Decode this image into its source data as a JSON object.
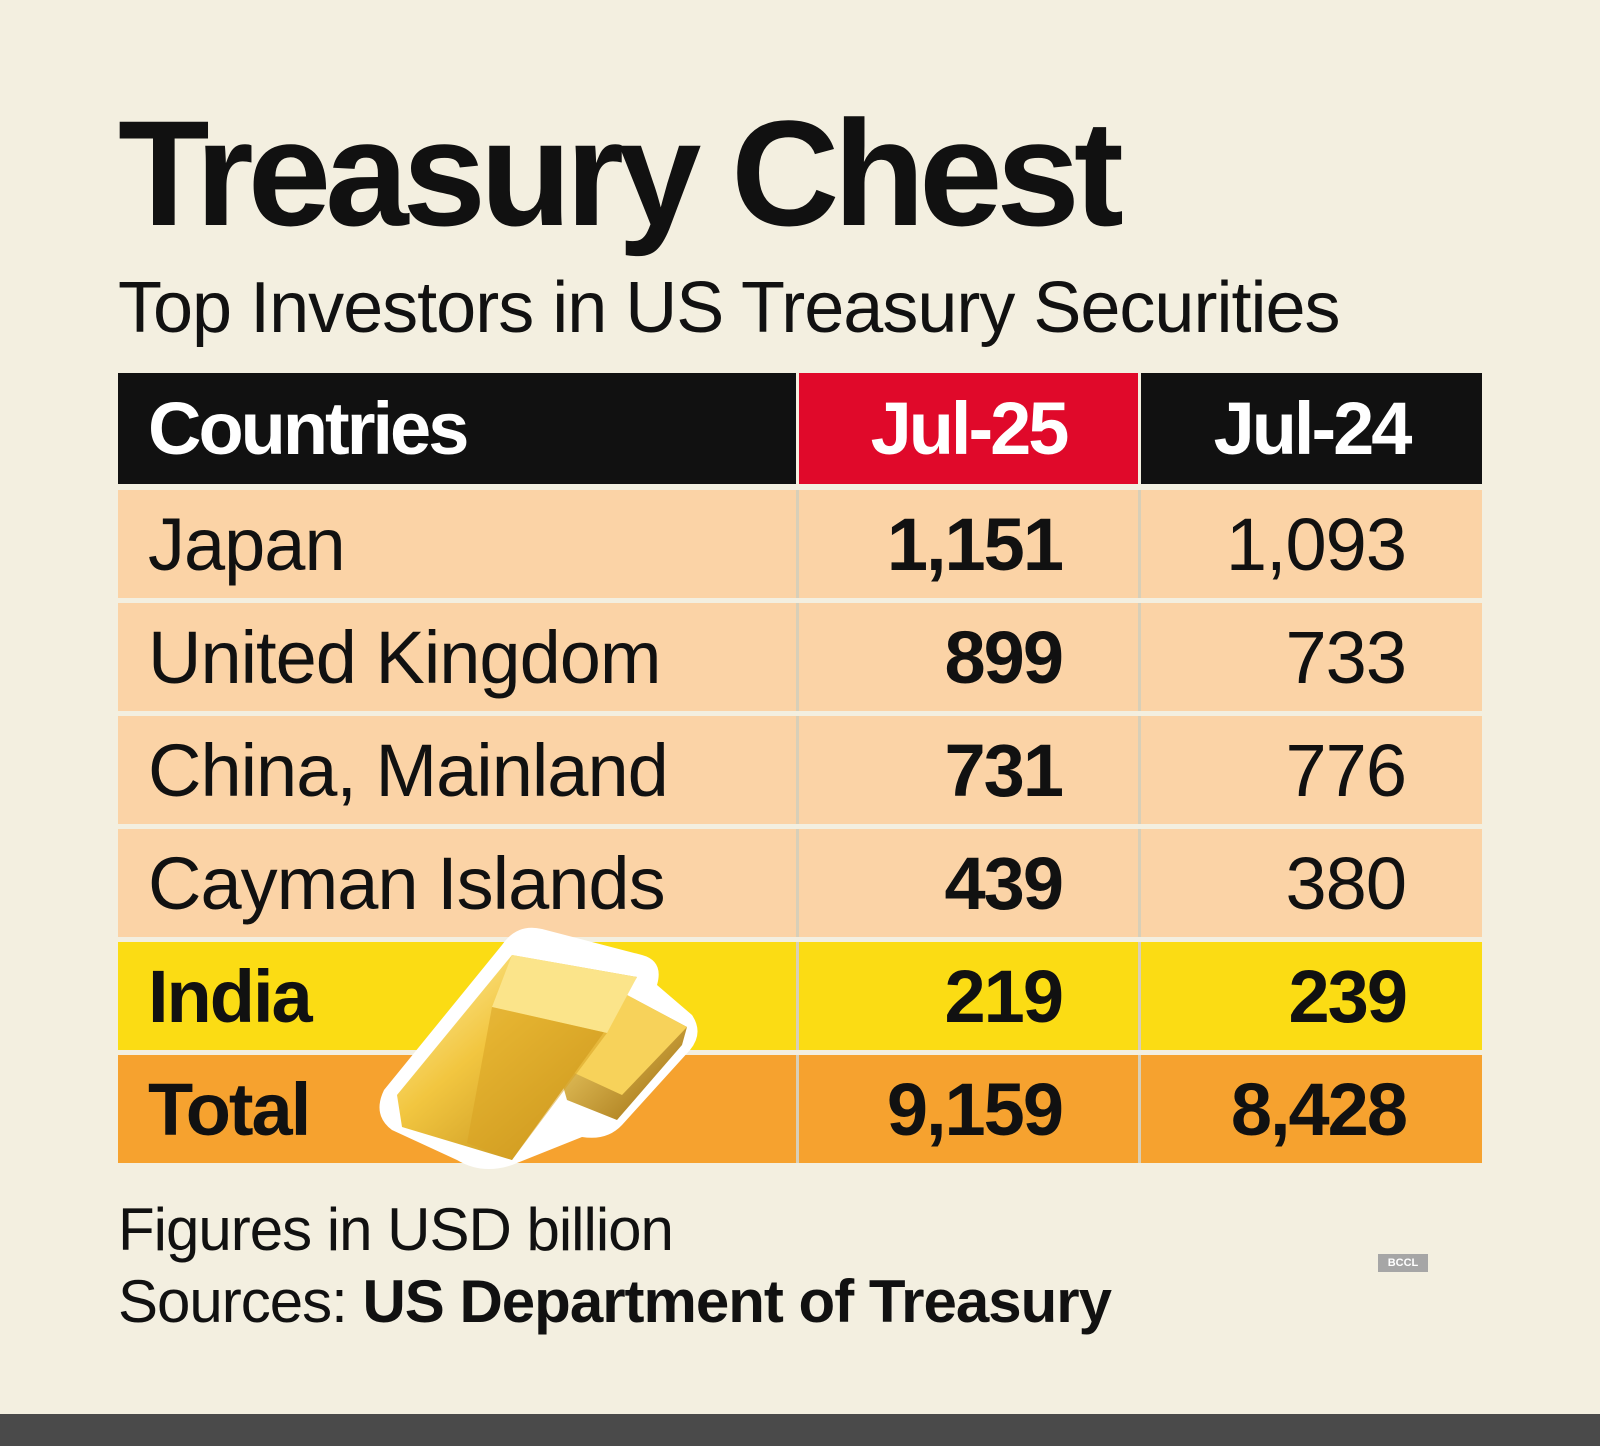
{
  "title": "Treasury Chest",
  "subtitle": "Top Investors in US Treasury Securities",
  "chart_data": {
    "type": "table",
    "columns": [
      "Countries",
      "Jul-25",
      "Jul-24"
    ],
    "rows": [
      {
        "country": "Japan",
        "jul25": "1,151",
        "jul24": "1,093"
      },
      {
        "country": "United Kingdom",
        "jul25": "899",
        "jul24": "733"
      },
      {
        "country": "China, Mainland",
        "jul25": "731",
        "jul24": "776"
      },
      {
        "country": "Cayman Islands",
        "jul25": "439",
        "jul24": "380"
      },
      {
        "country": "India",
        "jul25": "219",
        "jul24": "239"
      },
      {
        "country": "Total",
        "jul25": "9,159",
        "jul24": "8,428"
      }
    ],
    "units": "USD billion"
  },
  "footnote": "Figures in USD billion",
  "source": {
    "label": "Sources: ",
    "name": "US Department of Treasury"
  },
  "credit": "BCCL",
  "colors": {
    "background": "#f3efe0",
    "header": "#111111",
    "accent_header": "#e0092a",
    "row": "#fbd3a6",
    "india_row": "#fbdc14",
    "total_row": "#f6a22f"
  }
}
